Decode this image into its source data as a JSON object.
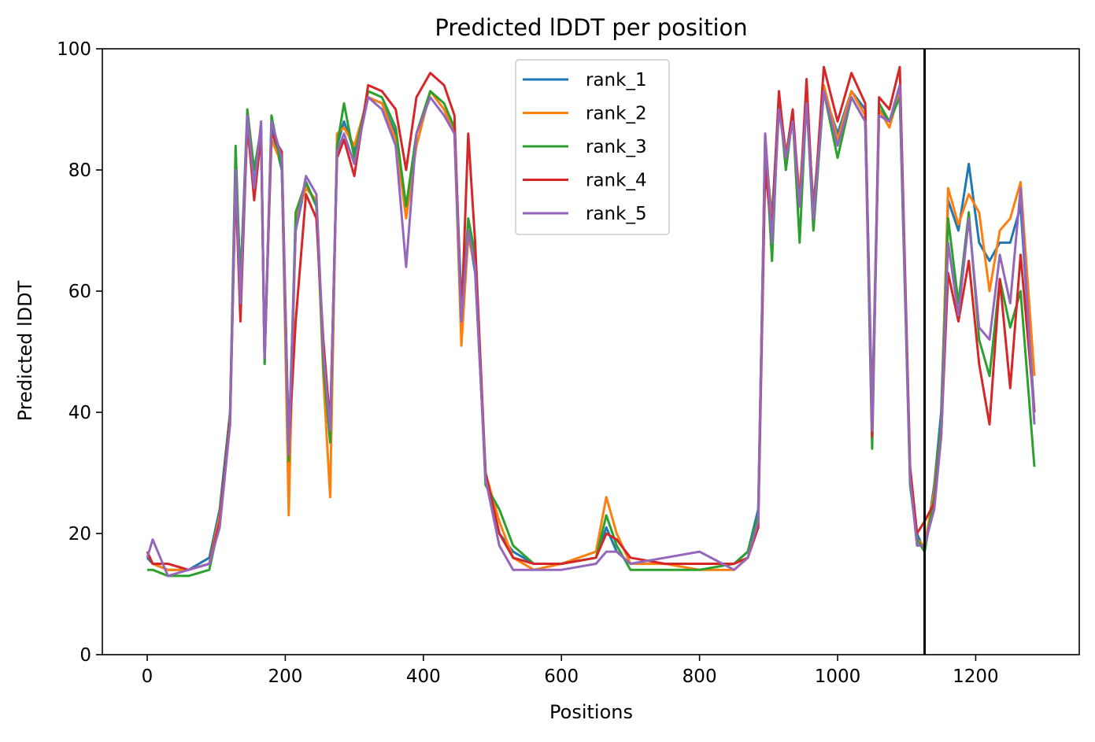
{
  "chart_data": {
    "type": "line",
    "title": "Predicted lDDT per position",
    "xlabel": "Positions",
    "ylabel": "Predicted lDDT",
    "xlim": [
      -65,
      1350
    ],
    "ylim": [
      0,
      100
    ],
    "xticks": [
      0,
      200,
      400,
      600,
      800,
      1000,
      1200
    ],
    "yticks": [
      0,
      20,
      40,
      60,
      80,
      100
    ],
    "grid": false,
    "legend_position": "top-center",
    "vline": {
      "x": 1126,
      "color": "#000000"
    },
    "series": [
      {
        "name": "rank_1",
        "color": "#1f77b4",
        "x": [
          0,
          8,
          30,
          60,
          90,
          105,
          120,
          128,
          135,
          145,
          155,
          165,
          170,
          180,
          195,
          205,
          215,
          230,
          245,
          255,
          265,
          275,
          285,
          300,
          320,
          340,
          360,
          375,
          390,
          410,
          430,
          445,
          455,
          465,
          475,
          490,
          510,
          530,
          560,
          600,
          650,
          665,
          680,
          700,
          750,
          800,
          850,
          870,
          885,
          895,
          905,
          915,
          925,
          935,
          945,
          955,
          965,
          980,
          1000,
          1020,
          1040,
          1050,
          1060,
          1075,
          1090,
          1105,
          1115,
          1126,
          1140,
          1150,
          1160,
          1175,
          1190,
          1205,
          1220,
          1235,
          1250,
          1265,
          1285
        ],
        "values": [
          16,
          15,
          14,
          14,
          16,
          24,
          40,
          80,
          62,
          87,
          78,
          86,
          48,
          87,
          80,
          35,
          70,
          78,
          74,
          50,
          37,
          84,
          88,
          83,
          92,
          91,
          86,
          74,
          84,
          93,
          90,
          87,
          58,
          70,
          63,
          30,
          20,
          17,
          15,
          15,
          16,
          21,
          17,
          15,
          15,
          15,
          15,
          17,
          24,
          84,
          72,
          92,
          83,
          88,
          75,
          92,
          74,
          93,
          86,
          93,
          90,
          40,
          90,
          88,
          93,
          30,
          20,
          17,
          28,
          40,
          75,
          70,
          81,
          68,
          65,
          68,
          68,
          74,
          40
        ]
      },
      {
        "name": "rank_2",
        "color": "#ff7f0e",
        "x": [
          0,
          8,
          30,
          60,
          90,
          105,
          120,
          128,
          135,
          145,
          155,
          165,
          170,
          180,
          195,
          205,
          215,
          230,
          245,
          255,
          265,
          275,
          285,
          300,
          320,
          340,
          360,
          375,
          390,
          410,
          430,
          445,
          455,
          465,
          475,
          490,
          510,
          530,
          560,
          600,
          650,
          665,
          680,
          700,
          750,
          800,
          850,
          870,
          885,
          895,
          905,
          915,
          925,
          935,
          945,
          955,
          965,
          980,
          1000,
          1020,
          1040,
          1050,
          1060,
          1075,
          1090,
          1105,
          1115,
          1126,
          1140,
          1150,
          1160,
          1175,
          1190,
          1205,
          1220,
          1235,
          1250,
          1265,
          1285
        ],
        "values": [
          17,
          15,
          14,
          14,
          15,
          23,
          38,
          79,
          60,
          87,
          76,
          86,
          50,
          85,
          81,
          23,
          72,
          77,
          75,
          46,
          26,
          86,
          87,
          84,
          92,
          91,
          85,
          72,
          84,
          93,
          90,
          86,
          51,
          69,
          64,
          30,
          22,
          16,
          14,
          15,
          17,
          26,
          20,
          15,
          15,
          14,
          14,
          16,
          22,
          86,
          70,
          91,
          83,
          88,
          76,
          92,
          73,
          94,
          85,
          93,
          89,
          38,
          90,
          87,
          93,
          30,
          19,
          18,
          27,
          38,
          77,
          71,
          76,
          73,
          60,
          70,
          72,
          78,
          46
        ]
      },
      {
        "name": "rank_3",
        "color": "#2ca02c",
        "x": [
          0,
          8,
          30,
          60,
          90,
          105,
          120,
          128,
          135,
          145,
          155,
          165,
          170,
          180,
          195,
          205,
          215,
          230,
          245,
          255,
          265,
          275,
          285,
          300,
          320,
          340,
          360,
          375,
          390,
          410,
          430,
          445,
          455,
          465,
          475,
          490,
          510,
          530,
          560,
          600,
          650,
          665,
          680,
          700,
          750,
          800,
          850,
          870,
          885,
          895,
          905,
          915,
          925,
          935,
          945,
          955,
          965,
          980,
          1000,
          1020,
          1040,
          1050,
          1060,
          1075,
          1090,
          1105,
          1115,
          1126,
          1140,
          1150,
          1160,
          1175,
          1190,
          1205,
          1220,
          1235,
          1250,
          1265,
          1285
        ],
        "values": [
          14,
          14,
          13,
          13,
          14,
          22,
          40,
          84,
          61,
          90,
          80,
          87,
          48,
          89,
          80,
          32,
          73,
          78,
          74,
          48,
          35,
          84,
          91,
          82,
          93,
          92,
          87,
          74,
          86,
          93,
          91,
          87,
          55,
          72,
          66,
          28,
          24,
          18,
          15,
          15,
          16,
          23,
          18,
          14,
          14,
          14,
          15,
          17,
          23,
          85,
          65,
          92,
          80,
          89,
          68,
          92,
          70,
          93,
          82,
          92,
          88,
          34,
          91,
          88,
          92,
          28,
          19,
          17,
          26,
          38,
          72,
          58,
          73,
          52,
          46,
          62,
          54,
          60,
          31
        ]
      },
      {
        "name": "rank_4",
        "color": "#d62728",
        "x": [
          0,
          8,
          30,
          60,
          90,
          105,
          120,
          128,
          135,
          145,
          155,
          165,
          170,
          180,
          195,
          205,
          215,
          230,
          245,
          255,
          265,
          275,
          285,
          300,
          320,
          340,
          360,
          375,
          390,
          410,
          430,
          445,
          455,
          465,
          475,
          490,
          510,
          530,
          560,
          600,
          650,
          665,
          680,
          700,
          750,
          800,
          850,
          870,
          885,
          895,
          905,
          915,
          925,
          935,
          945,
          955,
          965,
          980,
          1000,
          1020,
          1040,
          1050,
          1060,
          1075,
          1090,
          1105,
          1115,
          1126,
          1140,
          1150,
          1160,
          1175,
          1190,
          1205,
          1220,
          1235,
          1250,
          1265,
          1285
        ],
        "values": [
          17,
          15,
          15,
          14,
          15,
          22,
          39,
          78,
          55,
          88,
          75,
          86,
          49,
          86,
          83,
          34,
          55,
          76,
          72,
          52,
          38,
          82,
          85,
          79,
          94,
          93,
          90,
          80,
          92,
          96,
          94,
          89,
          55,
          86,
          68,
          30,
          20,
          16,
          15,
          15,
          16,
          20,
          19,
          16,
          15,
          15,
          15,
          16,
          21,
          80,
          70,
          93,
          82,
          90,
          74,
          95,
          72,
          97,
          88,
          96,
          91,
          36,
          92,
          90,
          97,
          31,
          20,
          22,
          25,
          36,
          63,
          55,
          65,
          48,
          38,
          62,
          44,
          66,
          40
        ]
      },
      {
        "name": "rank_5",
        "color": "#9467bd",
        "x": [
          0,
          8,
          30,
          60,
          90,
          105,
          120,
          128,
          135,
          145,
          155,
          165,
          170,
          180,
          195,
          205,
          215,
          230,
          245,
          255,
          265,
          275,
          285,
          300,
          320,
          340,
          360,
          375,
          390,
          410,
          430,
          445,
          455,
          465,
          475,
          490,
          510,
          530,
          560,
          600,
          650,
          665,
          680,
          700,
          750,
          800,
          850,
          870,
          885,
          895,
          905,
          915,
          925,
          935,
          945,
          955,
          965,
          980,
          1000,
          1020,
          1040,
          1050,
          1060,
          1075,
          1090,
          1105,
          1115,
          1126,
          1140,
          1150,
          1160,
          1175,
          1190,
          1205,
          1220,
          1235,
          1250,
          1265,
          1285
        ],
        "values": [
          16,
          19,
          13,
          14,
          15,
          21,
          38,
          80,
          58,
          89,
          77,
          88,
          49,
          88,
          82,
          33,
          70,
          79,
          76,
          50,
          37,
          83,
          86,
          81,
          92,
          90,
          84,
          64,
          86,
          92,
          89,
          86,
          55,
          70,
          64,
          29,
          18,
          14,
          14,
          14,
          15,
          17,
          17,
          15,
          16,
          17,
          14,
          16,
          22,
          86,
          68,
          90,
          82,
          88,
          74,
          91,
          72,
          93,
          84,
          92,
          88,
          37,
          89,
          88,
          94,
          29,
          18,
          18,
          24,
          36,
          68,
          56,
          72,
          54,
          52,
          66,
          58,
          77,
          38
        ]
      }
    ]
  }
}
